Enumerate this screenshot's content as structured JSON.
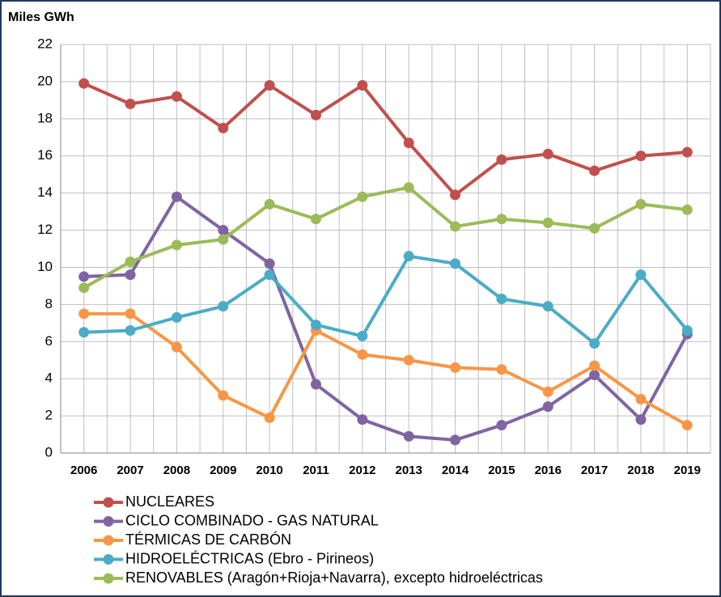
{
  "chart_data": {
    "type": "line",
    "title": "Miles GWh",
    "categories": [
      "2006",
      "2007",
      "2008",
      "2009",
      "2010",
      "2011",
      "2012",
      "2013",
      "2014",
      "2015",
      "2016",
      "2017",
      "2018",
      "2019"
    ],
    "series": [
      {
        "name": "NUCLEARES",
        "color": "#c0504d",
        "values": [
          19.9,
          18.8,
          19.2,
          17.5,
          19.8,
          18.2,
          19.8,
          16.7,
          13.9,
          15.8,
          16.1,
          15.2,
          16.0,
          16.2
        ]
      },
      {
        "name": "CICLO COMBINADO - GAS NATURAL",
        "color": "#8064a2",
        "values": [
          9.5,
          9.6,
          13.8,
          12.0,
          10.2,
          3.7,
          1.8,
          0.9,
          0.7,
          1.5,
          2.5,
          4.2,
          1.8,
          6.4
        ]
      },
      {
        "name": "TÉRMICAS DE CARBÓN",
        "color": "#f79646",
        "values": [
          7.5,
          7.5,
          5.7,
          3.1,
          1.9,
          6.6,
          5.3,
          5.0,
          4.6,
          4.5,
          3.3,
          4.7,
          2.9,
          1.5
        ]
      },
      {
        "name": "HIDROELÉCTRICAS (Ebro - Pirineos)",
        "color": "#4bacc6",
        "values": [
          6.5,
          6.6,
          7.3,
          7.9,
          9.6,
          6.9,
          6.3,
          10.6,
          10.2,
          8.3,
          7.9,
          5.9,
          9.6,
          6.6
        ]
      },
      {
        "name": "RENOVABLES (Aragón+Rioja+Navarra), excepto hidroeléctricas",
        "color": "#9bbb59",
        "values": [
          8.9,
          10.3,
          11.2,
          11.5,
          13.4,
          12.6,
          13.8,
          14.3,
          12.2,
          12.6,
          12.4,
          12.1,
          13.4,
          13.1
        ]
      }
    ],
    "ylim": [
      0,
      22
    ],
    "yticks": [
      0,
      2,
      4,
      6,
      8,
      10,
      12,
      14,
      16,
      18,
      20,
      22
    ],
    "grid": true
  }
}
